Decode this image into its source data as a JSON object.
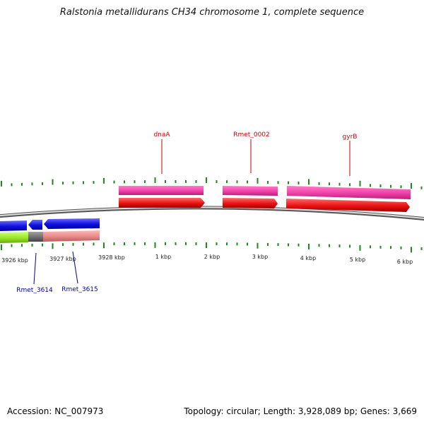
{
  "title": "Ralstonia metallidurans CH34 chromosome 1, complete sequence",
  "accession": "Accession: NC_007973",
  "summary": "Topology: circular; Length: 3,928,089 bp; Genes: 3,669",
  "colors": {
    "backbone": "#888888",
    "tick": "#1a8a1a",
    "forward_gene": "#f040a8",
    "forward_cds": "#e81010",
    "reverse_cds": "#1010e0",
    "reverse_gene_green": "#99e626",
    "reverse_gene_gray": "#6e6e6e",
    "reverse_gene_salmon": "#e88888",
    "forward_label": "#cc0000",
    "reverse_label": "#000099"
  },
  "scale": {
    "labels": [
      "3926 kbp",
      "3927 kbp",
      "3928 kbp",
      "1 kbp",
      "2 kbp",
      "3 kbp",
      "4 kbp",
      "5 kbp",
      "6 kbp"
    ]
  },
  "features": {
    "forward": [
      {
        "name": "dnaA"
      },
      {
        "name": "Rmet_0002"
      },
      {
        "name": "gyrB"
      }
    ],
    "reverse": [
      {
        "name": "Rmet_3614"
      },
      {
        "name": "Rmet_3615"
      }
    ]
  }
}
